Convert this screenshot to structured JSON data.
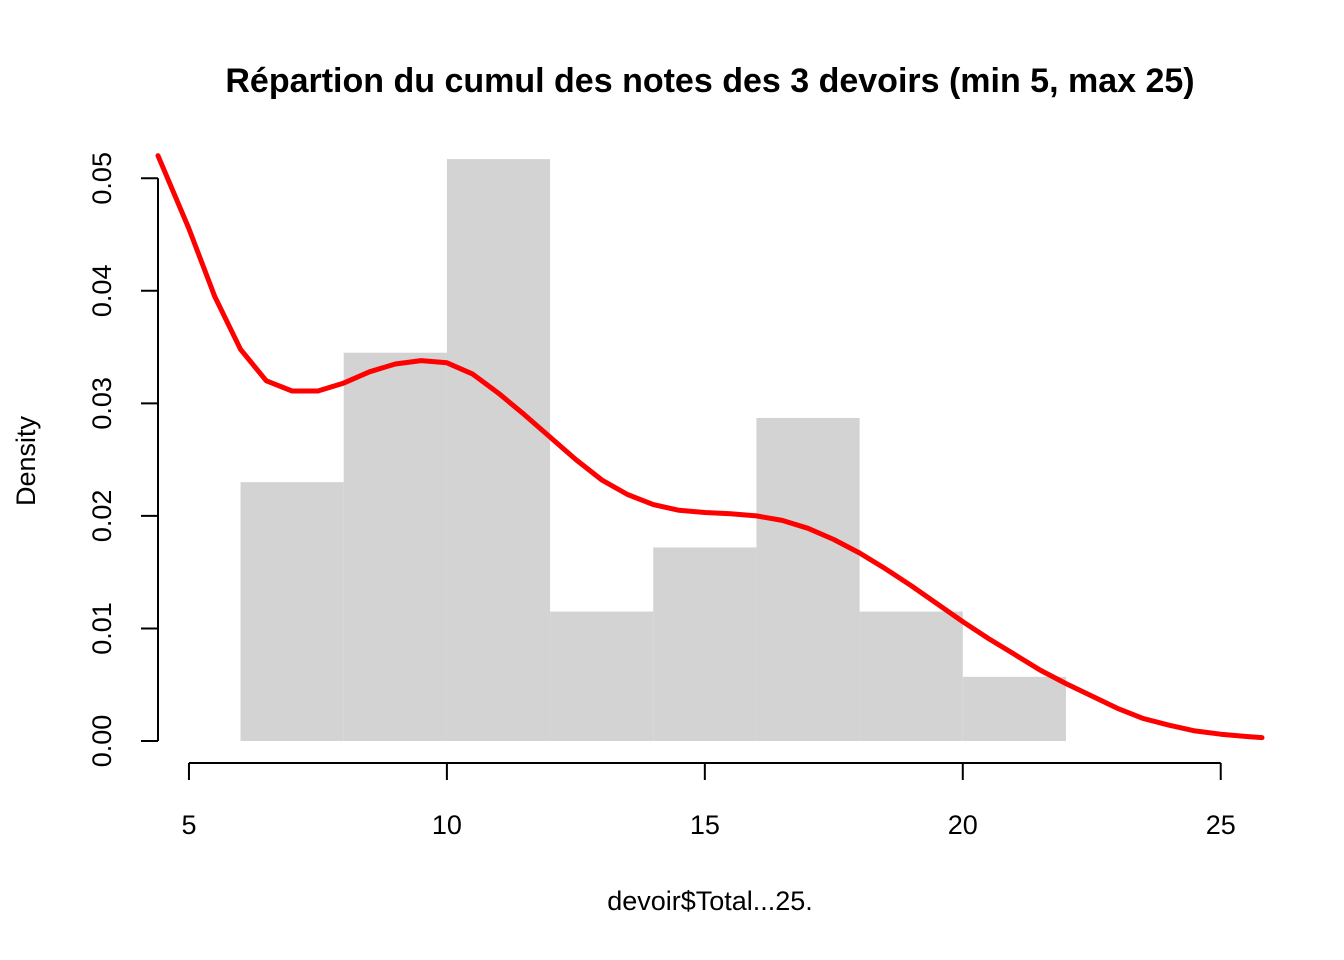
{
  "chart_data": {
    "type": "bar",
    "title": "Répartion du cumul des notes des 3 devoirs (min 5, max 25)",
    "xlabel": "devoir$Total...25.",
    "ylabel": "Density",
    "xlim": [
      4.4,
      25.8
    ],
    "ylim": [
      0,
      0.0518
    ],
    "x_ticks": [
      5,
      10,
      15,
      20,
      25
    ],
    "y_ticks": [
      0.0,
      0.01,
      0.02,
      0.03,
      0.04,
      0.05
    ],
    "y_tick_labels": [
      "0.00",
      "0.01",
      "0.02",
      "0.03",
      "0.04",
      "0.05"
    ],
    "histogram": {
      "bins": [
        {
          "x0": 6,
          "x1": 8,
          "density": 0.023
        },
        {
          "x0": 8,
          "x1": 10,
          "density": 0.0345
        },
        {
          "x0": 10,
          "x1": 12,
          "density": 0.0517
        },
        {
          "x0": 12,
          "x1": 14,
          "density": 0.0115
        },
        {
          "x0": 14,
          "x1": 16,
          "density": 0.0172
        },
        {
          "x0": 16,
          "x1": 18,
          "density": 0.0287
        },
        {
          "x0": 18,
          "x1": 20,
          "density": 0.0115
        },
        {
          "x0": 20,
          "x1": 22,
          "density": 0.0057
        }
      ]
    },
    "density_curve": {
      "x": [
        4.4,
        5,
        5.5,
        6,
        6.5,
        7,
        7.5,
        8,
        8.5,
        9,
        9.5,
        10,
        10.5,
        11,
        11.5,
        12,
        12.5,
        13,
        13.5,
        14,
        14.5,
        15,
        15.5,
        16,
        16.5,
        17,
        17.5,
        18,
        18.5,
        19,
        19.5,
        20,
        20.5,
        21,
        21.5,
        22,
        22.5,
        23,
        23.5,
        24,
        24.5,
        25,
        25.5,
        25.8
      ],
      "y": [
        0.052,
        0.0455,
        0.0395,
        0.0348,
        0.032,
        0.0311,
        0.0311,
        0.0318,
        0.0328,
        0.0335,
        0.0338,
        0.0336,
        0.0326,
        0.0309,
        0.029,
        0.027,
        0.025,
        0.0232,
        0.0219,
        0.021,
        0.0205,
        0.0203,
        0.0202,
        0.02,
        0.0196,
        0.0189,
        0.0179,
        0.0167,
        0.0153,
        0.0138,
        0.0122,
        0.0106,
        0.0091,
        0.0077,
        0.0063,
        0.0051,
        0.004,
        0.0029,
        0.002,
        0.0014,
        0.0009,
        0.0006,
        0.0004,
        0.0003
      ]
    },
    "colors": {
      "bars": "#d3d3d3",
      "density": "#ff0000",
      "axes": "#000000"
    },
    "grid": false
  }
}
